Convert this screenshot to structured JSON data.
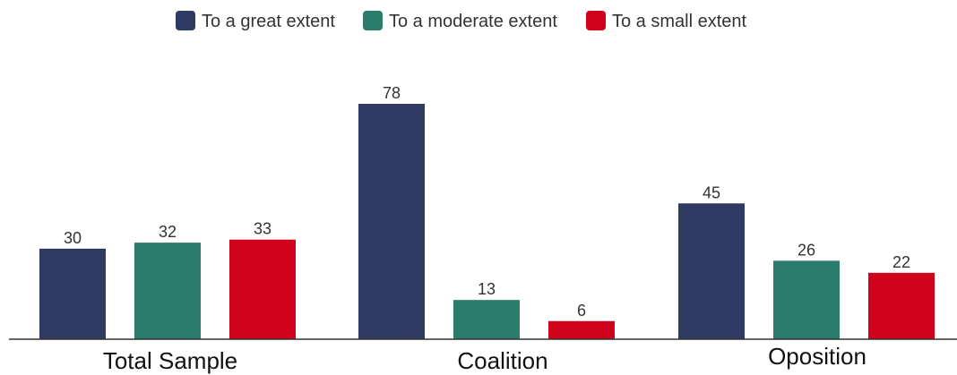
{
  "chart_data": {
    "type": "bar",
    "title": "",
    "xlabel": "",
    "ylabel": "",
    "ylim": [
      0,
      80
    ],
    "grid": false,
    "legend_position": "top-center",
    "categories": [
      "Total Sample",
      "Coalition",
      "Oposition"
    ],
    "series": [
      {
        "name": "To a great extent",
        "color": "#2e3a62",
        "values": [
          30,
          78,
          45
        ]
      },
      {
        "name": "To a moderate extent",
        "color": "#2a7c6b",
        "values": [
          32,
          13,
          26
        ]
      },
      {
        "name": "To a small extent",
        "color": "#d0021b",
        "values": [
          33,
          6,
          22
        ]
      }
    ]
  }
}
